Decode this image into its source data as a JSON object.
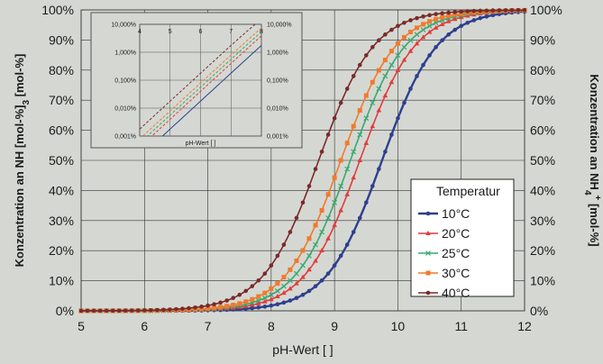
{
  "chart_data": [
    {
      "type": "line",
      "xlabel": "pH-Wert [ ]",
      "ylabel_left": "Konzentration an NH3 [mol-%]",
      "ylabel_right": "Konzentration an NH4+ [mol-%]",
      "xlim": [
        5,
        12
      ],
      "ylim": [
        0,
        100
      ],
      "x_ticks": [
        "5",
        "6",
        "7",
        "8",
        "9",
        "10",
        "11",
        "12"
      ],
      "y_ticks_left": [
        "0%",
        "10%",
        "20%",
        "30%",
        "40%",
        "50%",
        "60%",
        "70%",
        "80%",
        "90%",
        "100%"
      ],
      "y_ticks_right": [
        "100%",
        "90%",
        "80%",
        "70%",
        "60%",
        "50%",
        "40%",
        "30%",
        "20%",
        "10%",
        "0%"
      ],
      "grid": true,
      "legend": {
        "title": "Temperatur",
        "placement": "right"
      },
      "series": [
        {
          "name": "10°C",
          "color": "#2e3f8f",
          "marker": "dot",
          "pKa": 9.75,
          "x": [
            5,
            6,
            7,
            8,
            8.5,
            9,
            9.5,
            10,
            10.5,
            11,
            12
          ],
          "values": [
            0.002,
            0.018,
            0.18,
            1.75,
            5.3,
            15.1,
            36.0,
            64.0,
            84.9,
            94.7,
            99.4
          ]
        },
        {
          "name": "20°C",
          "color": "#e03c3c",
          "marker": "triangle",
          "pKa": 9.4,
          "x": [
            5,
            6,
            7,
            8,
            8.5,
            9,
            9.5,
            10,
            10.5,
            11,
            12
          ],
          "values": [
            0.004,
            0.04,
            0.4,
            3.8,
            11.2,
            28.5,
            55.7,
            79.9,
            92.6,
            97.5,
            99.7
          ]
        },
        {
          "name": "25°C",
          "color": "#3aa86f",
          "marker": "x",
          "pKa": 9.25,
          "x": [
            5,
            6,
            7,
            8,
            8.5,
            9,
            9.5,
            10,
            10.5,
            11,
            12
          ],
          "values": [
            0.006,
            0.056,
            0.56,
            5.3,
            15.1,
            36.0,
            64.0,
            84.9,
            94.7,
            98.3,
            99.8
          ]
        },
        {
          "name": "30°C",
          "color": "#f07a2e",
          "marker": "square",
          "pKa": 9.1,
          "x": [
            5,
            6,
            7,
            8,
            8.5,
            9,
            9.5,
            10,
            10.5,
            11,
            12
          ],
          "values": [
            0.008,
            0.079,
            0.79,
            7.4,
            20.1,
            44.3,
            71.5,
            88.8,
            96.2,
            98.8,
            99.9
          ]
        },
        {
          "name": "40°C",
          "color": "#7a2a2a",
          "marker": "dot",
          "pKa": 8.75,
          "x": [
            5,
            6,
            7,
            8,
            8.5,
            9,
            9.5,
            10,
            10.5,
            11,
            12
          ],
          "values": [
            0.018,
            0.18,
            1.75,
            15.1,
            36.0,
            64.0,
            84.9,
            94.7,
            98.3,
            99.4,
            99.9
          ]
        }
      ]
    },
    {
      "type": "line",
      "role": "inset",
      "xlabel": "pH-Wert [ ]",
      "xlim": [
        4,
        8
      ],
      "x_ticks": [
        "4",
        "5",
        "6",
        "7",
        "8"
      ],
      "y_ticks_left": [
        "0,001%",
        "0,010%",
        "0,100%",
        "1,000%",
        "10,000%"
      ],
      "y_ticks_right": [
        "10,000%",
        "1,000%",
        "0,100%",
        "0,010%",
        "0,001%"
      ],
      "y_scale": "log",
      "ylim": [
        0.001,
        10
      ],
      "grid": true,
      "series_ref": "same as main chart",
      "line_styles": [
        "solid",
        "dashed",
        "dashed",
        "dashed",
        "dashed"
      ]
    }
  ]
}
